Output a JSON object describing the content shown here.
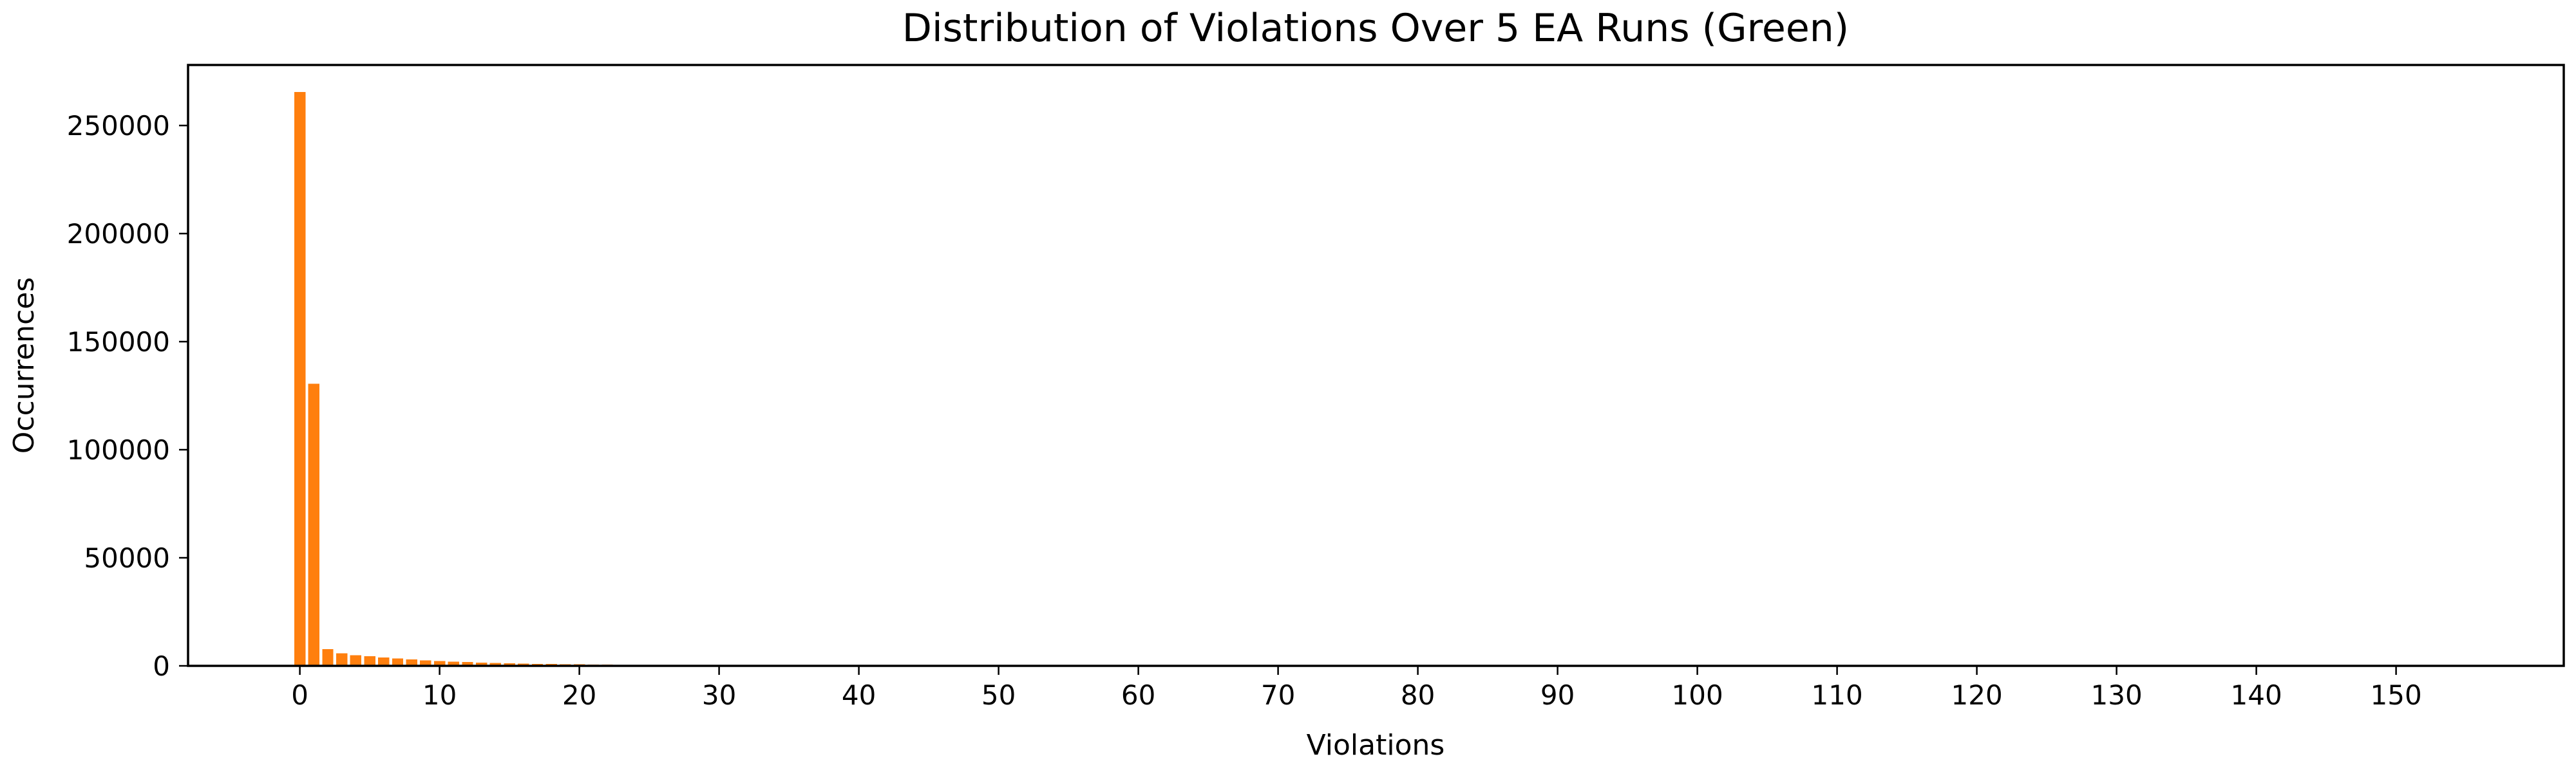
{
  "chart_data": {
    "type": "bar",
    "title": "Distribution of Violations Over 5 EA Runs (Green)",
    "xlabel": "Violations",
    "ylabel": "Occurrences",
    "bar_color": "#ff7f0e",
    "xlim": [
      -8,
      162
    ],
    "ylim": [
      0,
      278000
    ],
    "xticks": [
      0,
      10,
      20,
      30,
      40,
      50,
      60,
      70,
      80,
      90,
      100,
      110,
      120,
      130,
      140,
      150
    ],
    "yticks": [
      0,
      50000,
      100000,
      150000,
      200000,
      250000
    ],
    "x": [
      0,
      1,
      2,
      3,
      4,
      5,
      6,
      7,
      8,
      9,
      10,
      11,
      12,
      13,
      14,
      15,
      16,
      17,
      18,
      19,
      20,
      21,
      22,
      23,
      24,
      25,
      26,
      27,
      28,
      29,
      30,
      31,
      32,
      33,
      34,
      35,
      36,
      37,
      38,
      39,
      40,
      41,
      42,
      43,
      44,
      45,
      46,
      47,
      48,
      49,
      50,
      51,
      52,
      53,
      54,
      55
    ],
    "values": [
      265500,
      130500,
      7800,
      5800,
      4900,
      4400,
      3900,
      3400,
      3000,
      2600,
      2300,
      2000,
      1750,
      1550,
      1350,
      1200,
      1050,
      950,
      850,
      750,
      680,
      620,
      560,
      510,
      460,
      420,
      380,
      350,
      320,
      300,
      280,
      260,
      240,
      220,
      200,
      190,
      180,
      170,
      160,
      150,
      140,
      130,
      120,
      110,
      100,
      95,
      90,
      85,
      80,
      75,
      70,
      60,
      50,
      40,
      30,
      20
    ],
    "grid": false,
    "legend": "none"
  }
}
